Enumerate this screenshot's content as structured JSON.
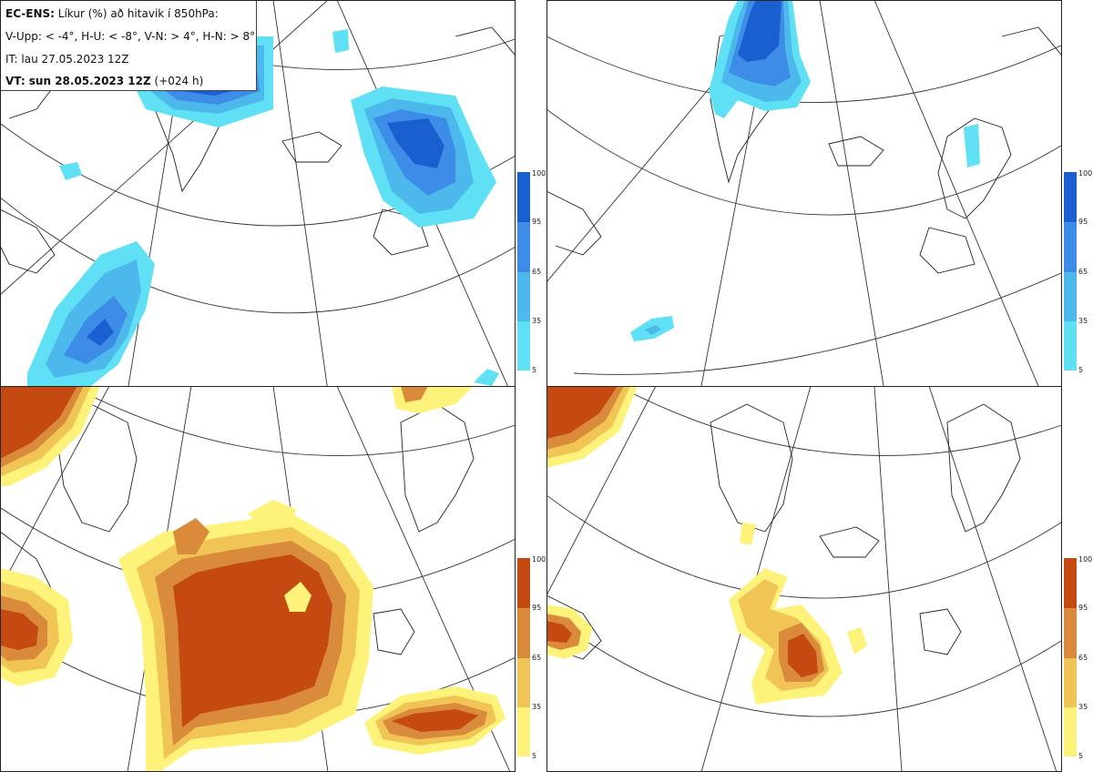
{
  "header": {
    "line1_bold": "EC-ENS:",
    "line1_rest": "Líkur (%) að hitavik í 850hPa:",
    "line2": "V-Upp: < -4°, H-U: < -8°, V-N: > 4°, H-N: > 8°",
    "line3": "IT: lau 27.05.2023 12Z",
    "line4_bold": "VT: sun 28.05.2023 12Z",
    "line4_rest": "(+024 h)"
  },
  "colorbars": {
    "cold": {
      "ticks": [
        "100",
        "95",
        "65",
        "35",
        "5"
      ],
      "colors": [
        "#1a5fd0",
        "#3d8ce8",
        "#4cb8ec",
        "#5fe0f5"
      ]
    },
    "warm": {
      "ticks": [
        "100",
        "95",
        "65",
        "35",
        "5"
      ],
      "colors": [
        "#c44a12",
        "#d98a3a",
        "#f0c555",
        "#fdf37a"
      ]
    }
  },
  "panels": [
    {
      "name": "V-Upp",
      "palette": "cold"
    },
    {
      "name": "H-U",
      "palette": "cold"
    },
    {
      "name": "V-N",
      "palette": "warm"
    },
    {
      "name": "H-N",
      "palette": "warm"
    }
  ]
}
